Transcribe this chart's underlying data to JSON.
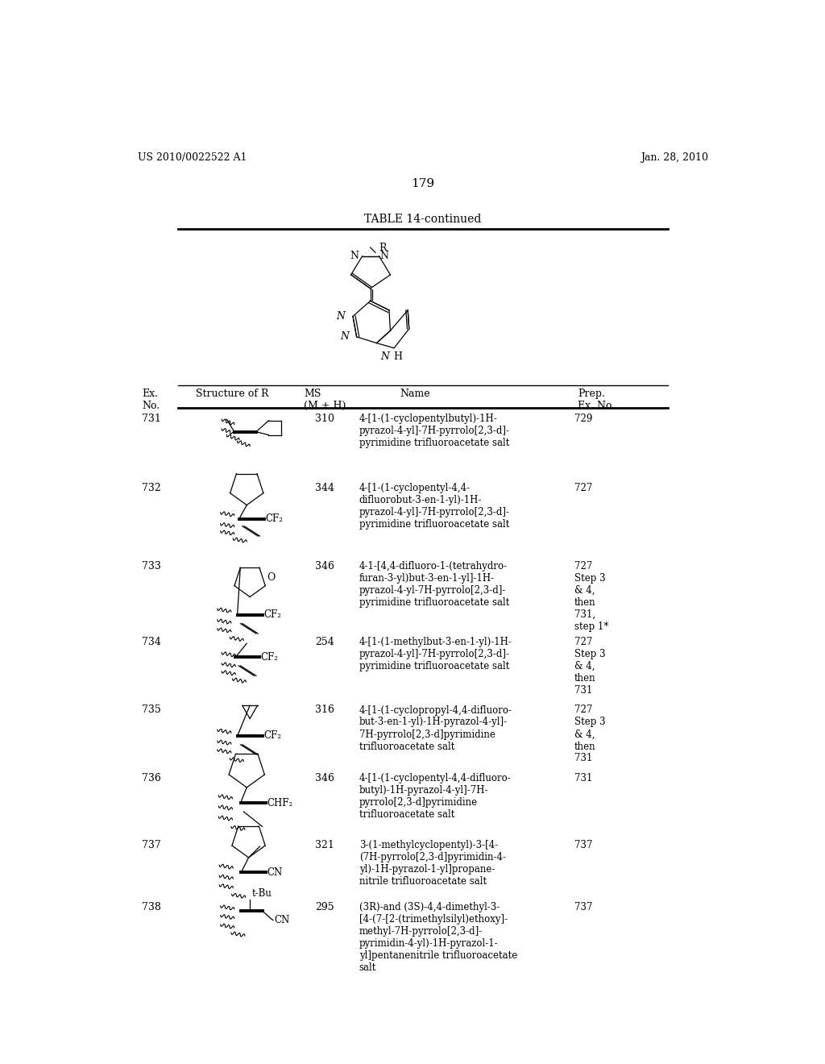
{
  "patent_left": "US 2010/0022522 A1",
  "patent_right": "Jan. 28, 2010",
  "page_number": "179",
  "table_title": "TABLE 14-continued",
  "rows": [
    {
      "ex_no": "731",
      "ms": "310",
      "name": "4-[1-(1-cyclopentylbutyl)-1H-\npyrazol-4-yl]-7H-pyrrolo[2,3-d]-\npyrimidine trifluoroacetate salt",
      "prep": "729"
    },
    {
      "ex_no": "732",
      "ms": "344",
      "name": "4-[1-(1-cyclopentyl-4,4-\ndifluorobut-3-en-1-yl)-1H-\npyrazol-4-yl]-7H-pyrrolo[2,3-d]-\npyrimidine trifluoroacetate salt",
      "prep": "727"
    },
    {
      "ex_no": "733",
      "ms": "346",
      "name": "4-1-[4,4-difluoro-1-(tetrahydro-\nfuran-3-yl)but-3-en-1-yl]-1H-\npyrazol-4-yl-7H-pyrrolo[2,3-d]-\npyrimidine trifluoroacetate salt",
      "prep": "727\nStep 3\n& 4,\nthen\n731,\nstep 1*"
    },
    {
      "ex_no": "734",
      "ms": "254",
      "name": "4-[1-(1-methylbut-3-en-1-yl)-1H-\npyrazol-4-yl]-7H-pyrrolo[2,3-d]-\npyrimidine trifluoroacetate salt",
      "prep": "727\nStep 3\n& 4,\nthen\n731"
    },
    {
      "ex_no": "735",
      "ms": "316",
      "name": "4-[1-(1-cyclopropyl-4,4-difluoro-\nbut-3-en-1-yl)-1H-pyrazol-4-yl]-\n7H-pyrrolo[2,3-d]pyrimidine\ntrifluoroacetate salt",
      "prep": "727\nStep 3\n& 4,\nthen\n731"
    },
    {
      "ex_no": "736",
      "ms": "346",
      "name": "4-[1-(1-cyclopentyl-4,4-difluoro-\nbutyl)-1H-pyrazol-4-yl]-7H-\npyrrolo[2,3-d]pyrimidine\ntrifluoroacetate salt",
      "prep": "731"
    },
    {
      "ex_no": "737",
      "ms": "321",
      "name": "3-(1-methylcyclopentyl)-3-[4-\n(7H-pyrrolo[2,3-d]pyrimidin-4-\nyl)-1H-pyrazol-1-yl]propane-\nnitrile trifluoroacetate salt",
      "prep": "737"
    },
    {
      "ex_no": "738",
      "ms": "295",
      "name": "(3R)-and (3S)-4,4-dimethyl-3-\n[4-(7-[2-(trimethylsilyl)ethoxy]-\nmethyl-7H-pyrrolo[2,3-d]-\npyrimidin-4-yl)-1H-pyrazol-1-\nyl]pentanenitrile trifluoroacetate\nsalt",
      "prep": "737"
    }
  ],
  "bg_color": "#ffffff"
}
